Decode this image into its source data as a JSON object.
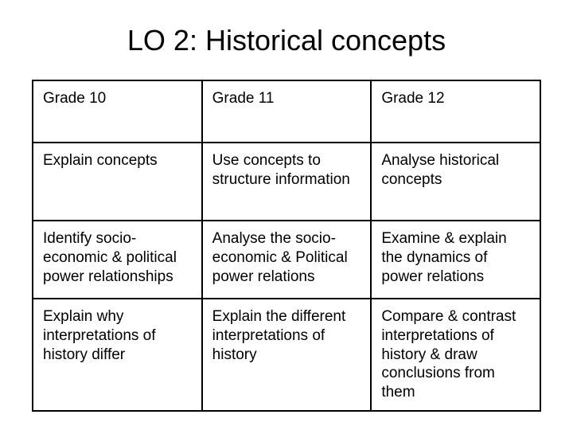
{
  "title": "LO 2: Historical concepts",
  "table": {
    "columns": [
      "Grade 10",
      "Grade 11",
      "Grade 12"
    ],
    "rows": [
      [
        "Explain concepts",
        "Use concepts to structure information",
        "Analyse historical concepts"
      ],
      [
        "Identify socio-economic & political power relationships",
        "Analyse the socio-economic & Political power relations",
        "Examine & explain the dynamics of power relations"
      ],
      [
        "Explain why interpretations of history differ",
        "Explain the different interpretations of history",
        "Compare & contrast interpretations of history & draw conclusions from them"
      ]
    ]
  },
  "style": {
    "background_color": "#ffffff",
    "text_color": "#000000",
    "border_color": "#000000",
    "title_fontsize": 36,
    "cell_fontsize": 19,
    "font_family": "Arial"
  }
}
